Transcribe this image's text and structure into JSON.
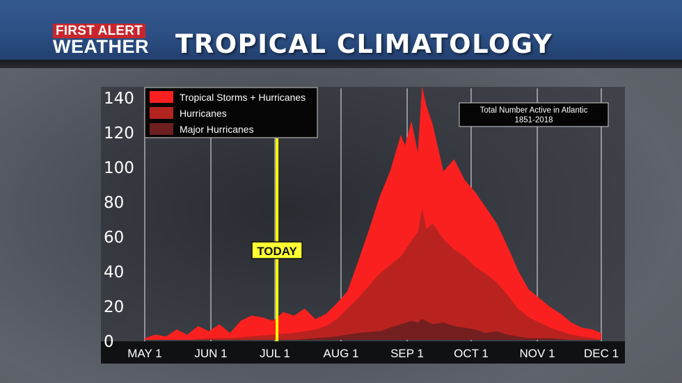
{
  "header": {
    "logo_top": "FIRST ALERT",
    "logo_bottom": "WEATHER",
    "title": "TROPICAL CLIMATOLOGY"
  },
  "colors": {
    "all_storms": "#fa2020",
    "hurricanes": "#b3241f",
    "major_hurricanes": "#6e1f1f",
    "today_line": "#ffff00",
    "header_blue": "#2c4f84"
  },
  "chart_data": {
    "type": "area",
    "title": "",
    "xlabel": "",
    "ylabel": "",
    "ylim": [
      0,
      140
    ],
    "y_ticks": [
      0,
      20,
      40,
      60,
      80,
      100,
      120,
      140
    ],
    "x_start": "May 1",
    "x_end": "Dec 1",
    "x_ticks": [
      {
        "label": "MAY 1",
        "day": 0
      },
      {
        "label": "JUN 1",
        "day": 31
      },
      {
        "label": "JUL 1",
        "day": 61
      },
      {
        "label": "AUG 1",
        "day": 92
      },
      {
        "label": "SEP 1",
        "day": 123
      },
      {
        "label": "OCT 1",
        "day": 153
      },
      {
        "label": "NOV 1",
        "day": 184
      },
      {
        "label": "DEC 1",
        "day": 214
      }
    ],
    "grid": true,
    "legend": {
      "placement": "top-left",
      "entries": [
        "Tropical Storms + Hurricanes",
        "Hurricanes",
        "Major Hurricanes"
      ]
    },
    "annotation": {
      "line1": "Total Number Active in Atlantic",
      "line2": "1851-2018",
      "placement": "top-right"
    },
    "today": {
      "label": "TODAY",
      "day": 62
    },
    "series": [
      {
        "name": "Tropical Storms + Hurricanes",
        "x": [
          0,
          5,
          10,
          15,
          20,
          25,
          30,
          35,
          40,
          45,
          50,
          55,
          60,
          65,
          70,
          75,
          80,
          85,
          90,
          95,
          100,
          105,
          110,
          115,
          120,
          122,
          125,
          128,
          130,
          132,
          135,
          140,
          145,
          150,
          155,
          160,
          165,
          170,
          175,
          180,
          185,
          190,
          195,
          200,
          205,
          210,
          214
        ],
        "values": [
          1,
          3,
          2,
          6,
          3,
          8,
          5,
          9,
          4,
          11,
          14,
          13,
          11,
          16,
          14,
          18,
          12,
          15,
          21,
          28,
          45,
          63,
          82,
          97,
          118,
          112,
          126,
          108,
          146,
          135,
          124,
          97,
          104,
          92,
          85,
          76,
          67,
          54,
          40,
          29,
          24,
          19,
          15,
          10,
          7,
          6,
          4
        ]
      },
      {
        "name": "Hurricanes",
        "x": [
          0,
          10,
          20,
          30,
          40,
          50,
          60,
          70,
          80,
          85,
          90,
          95,
          100,
          105,
          110,
          115,
          120,
          125,
          128,
          130,
          132,
          135,
          140,
          145,
          150,
          155,
          160,
          165,
          170,
          175,
          180,
          185,
          190,
          195,
          200,
          205,
          210,
          214
        ],
        "values": [
          0,
          0,
          0,
          1,
          1,
          2,
          3,
          4,
          6,
          8,
          12,
          18,
          24,
          31,
          38,
          43,
          48,
          57,
          62,
          76,
          64,
          67,
          58,
          52,
          48,
          42,
          38,
          33,
          26,
          18,
          13,
          10,
          7,
          5,
          3,
          2,
          1,
          0
        ]
      },
      {
        "name": "Major Hurricanes",
        "x": [
          0,
          50,
          70,
          80,
          90,
          100,
          110,
          115,
          120,
          125,
          128,
          130,
          135,
          140,
          145,
          150,
          155,
          160,
          165,
          170,
          175,
          180,
          190,
          200,
          214
        ],
        "values": [
          0,
          0,
          0,
          1,
          2,
          4,
          5,
          7,
          9,
          11,
          10,
          12,
          9,
          10,
          8,
          7,
          6,
          4,
          5,
          3,
          2,
          1,
          1,
          0,
          0
        ]
      }
    ]
  }
}
